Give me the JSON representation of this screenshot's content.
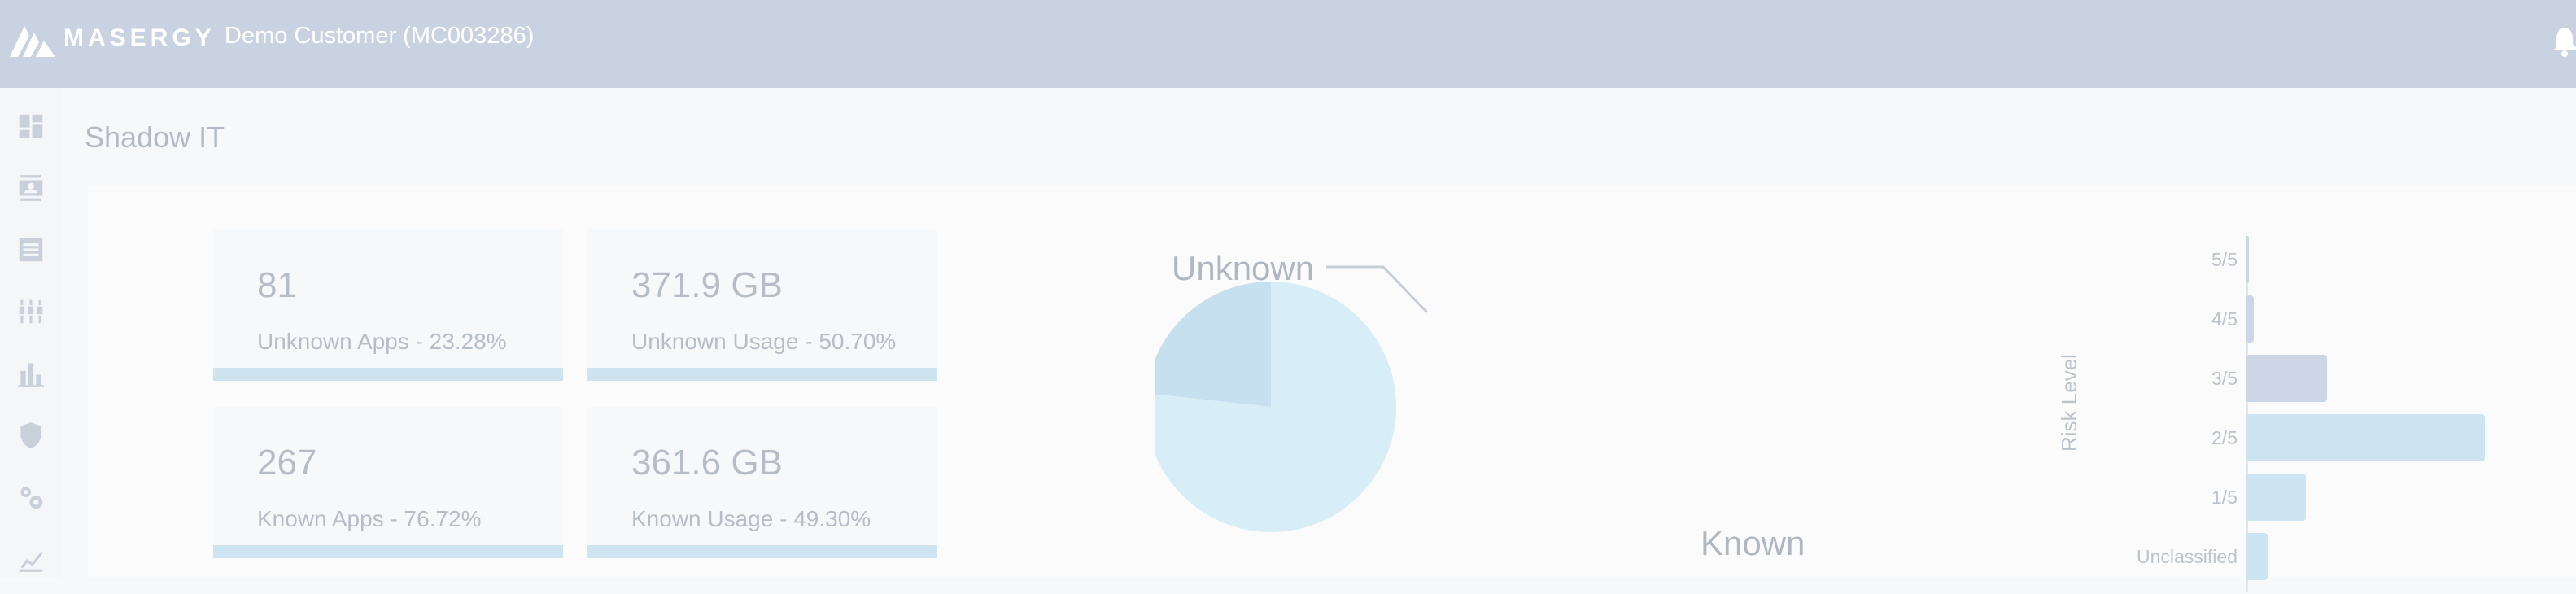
{
  "header": {
    "brand": "MASERGY",
    "customer": "Demo Customer (MC003286)"
  },
  "colors": {
    "topbar": "#c9d2e0",
    "unknown_slice": "#c6e0ef",
    "known_slice": "#d8eef7",
    "risk_bar_blue": "#cde4f2",
    "risk_bar_slate": "#ccd6e6"
  },
  "sidebar": {
    "items": [
      {
        "icon": "dashboard-icon"
      },
      {
        "icon": "contacts-icon"
      },
      {
        "icon": "list-icon"
      },
      {
        "icon": "network-icon"
      },
      {
        "icon": "bar-chart-icon"
      },
      {
        "icon": "shield-icon"
      },
      {
        "icon": "settings-icon"
      },
      {
        "icon": "trend-icon"
      }
    ]
  },
  "page": {
    "title": "Shadow IT"
  },
  "cards": [
    {
      "value": "81",
      "label": "Unknown Apps - 23.28%"
    },
    {
      "value": "371.9 GB",
      "label": "Unknown Usage - 50.70%"
    },
    {
      "value": "267",
      "label": "Known Apps - 76.72%"
    },
    {
      "value": "361.6 GB",
      "label": "Known Usage - 49.30%"
    }
  ],
  "chart_data": [
    {
      "type": "pie",
      "title": "",
      "series": [
        {
          "name": "Unknown",
          "value": 23.28
        },
        {
          "name": "Known",
          "value": 76.72
        }
      ]
    },
    {
      "type": "bar",
      "orientation": "horizontal",
      "ylabel": "Risk Level",
      "categories": [
        "5/5",
        "4/5",
        "3/5",
        "2/5",
        "1/5",
        "Unclassified"
      ],
      "values": [
        1,
        4,
        41,
        120,
        30,
        11
      ],
      "note_truncated": "2/5 bar extends past visible edge"
    }
  ]
}
